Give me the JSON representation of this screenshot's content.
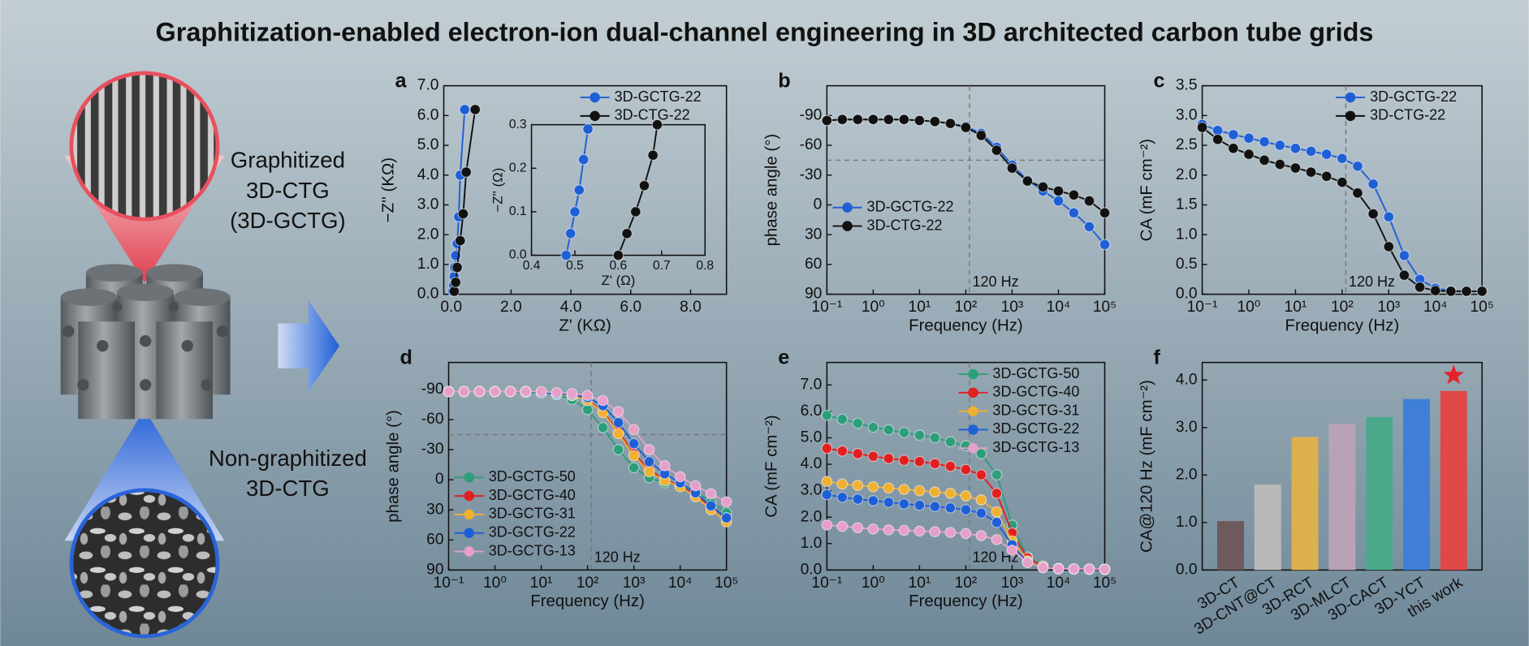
{
  "title": "Graphitization-enabled electron-ion dual-channel engineering in 3D architected carbon tube grids",
  "illustration": {
    "top_label": [
      "Graphitized",
      "3D-CTG",
      "(3D-GCTG)"
    ],
    "bottom_label": [
      "Non-graphitized",
      "3D-CTG"
    ]
  },
  "chart_data": [
    {
      "type": "line",
      "label": "a",
      "markers": true,
      "xlabel": "Z' (KΩ)",
      "ylabel": "−Z'' (KΩ)",
      "xlim": [
        -0.25,
        9.2
      ],
      "ylim": [
        0,
        7
      ],
      "xticks": [
        {
          "value": 0,
          "label": "0.0"
        },
        {
          "value": 2,
          "label": "2.0"
        },
        {
          "value": 4,
          "label": "4.0"
        },
        {
          "value": 6,
          "label": "6.0"
        },
        {
          "value": 8,
          "label": "8.0"
        }
      ],
      "yticks": [
        {
          "value": 0,
          "label": "0.0"
        },
        {
          "value": 1,
          "label": "1.0"
        },
        {
          "value": 2,
          "label": "2.0"
        },
        {
          "value": 3,
          "label": "3.0"
        },
        {
          "value": 4,
          "label": "4.0"
        },
        {
          "value": 5,
          "label": "5.0"
        },
        {
          "value": 6,
          "label": "6.0"
        },
        {
          "value": 7,
          "label": "7.0"
        }
      ],
      "legend": "upper right",
      "series": [
        {
          "name": "3D-GCTG-22",
          "color": "#1f5fd6",
          "x": [
            0.05,
            0.08,
            0.1,
            0.12,
            0.15,
            0.2,
            0.25,
            0.3,
            0.45
          ],
          "values": [
            0.1,
            0.3,
            0.6,
            0.9,
            1.3,
            1.7,
            2.6,
            4.0,
            6.2
          ]
        },
        {
          "name": "3D-CTG-22",
          "color": "#111111",
          "x": [
            0.1,
            0.15,
            0.2,
            0.3,
            0.4,
            0.5,
            0.8
          ],
          "values": [
            0.1,
            0.4,
            0.9,
            1.8,
            2.7,
            4.1,
            6.2
          ]
        }
      ],
      "inset": {
        "type": "line",
        "markers": true,
        "xlabel": "Z' (Ω)",
        "ylabel": "−Z'' (Ω)",
        "xlim": [
          0.4,
          0.8
        ],
        "ylim": [
          0,
          0.3
        ],
        "xticks": [
          0.4,
          0.5,
          0.6,
          0.7,
          0.8
        ],
        "yticks": [
          {
            "value": 0,
            "label": "0.0"
          },
          0.1,
          0.2,
          0.3
        ],
        "series": [
          {
            "color": "#1f5fd6",
            "x": [
              0.48,
              0.49,
              0.5,
              0.51,
              0.52,
              0.53
            ],
            "values": [
              0,
              0.05,
              0.1,
              0.15,
              0.22,
              0.29
            ]
          },
          {
            "color": "#111111",
            "x": [
              0.6,
              0.62,
              0.64,
              0.66,
              0.68,
              0.69
            ],
            "values": [
              0,
              0.05,
              0.1,
              0.16,
              0.23,
              0.3
            ]
          }
        ]
      }
    },
    {
      "type": "line",
      "label": "b",
      "markers": true,
      "xscale": "log",
      "xlabel": "Frequency (Hz)",
      "ylabel": "phase angle (°)",
      "xlim": [
        0.1,
        100000
      ],
      "ylim": [
        90,
        -120
      ],
      "xticks": [
        {
          "value": 0.1,
          "label": "10⁻¹"
        },
        {
          "value": 1,
          "label": "10⁰"
        },
        {
          "value": 10,
          "label": "10¹"
        },
        {
          "value": 100,
          "label": "10²"
        },
        {
          "value": 1000,
          "label": "10³"
        },
        {
          "value": 10000,
          "label": "10⁴"
        },
        {
          "value": 100000,
          "label": "10⁵"
        }
      ],
      "yticks": [
        -90,
        -60,
        -30,
        0,
        30,
        60,
        90
      ],
      "ref_x": 120,
      "ref_y": -45,
      "annotation": "120 Hz",
      "legend": "center left",
      "x": [
        0.1,
        0.215,
        0.464,
        1,
        2.15,
        4.64,
        10,
        21.5,
        46.4,
        100,
        215,
        464,
        1000,
        2150,
        4640,
        10000,
        21500,
        46400,
        100000
      ],
      "series": [
        {
          "name": "3D-GCTG-22",
          "color": "#1f5fd6",
          "values": [
            -85,
            -86,
            -86,
            -86,
            -86,
            -86,
            -85,
            -84,
            -82,
            -79,
            -72,
            -58,
            -40,
            -25,
            -14,
            -4,
            8,
            22,
            40
          ]
        },
        {
          "name": "3D-CTG-22",
          "color": "#111111",
          "values": [
            -85,
            -86,
            -86,
            -86,
            -86,
            -86,
            -85,
            -84,
            -82,
            -78,
            -70,
            -55,
            -37,
            -24,
            -18,
            -14,
            -10,
            -4,
            8
          ]
        }
      ]
    },
    {
      "type": "line",
      "label": "c",
      "markers": true,
      "xscale": "log",
      "xlabel": "Frequency (Hz)",
      "ylabel": "CA (mF cm⁻²)",
      "xlim": [
        0.1,
        100000
      ],
      "ylim": [
        0,
        3.5
      ],
      "xticks": [
        {
          "value": 0.1,
          "label": "10⁻¹"
        },
        {
          "value": 1,
          "label": "10⁰"
        },
        {
          "value": 10,
          "label": "10¹"
        },
        {
          "value": 100,
          "label": "10²"
        },
        {
          "value": 1000,
          "label": "10³"
        },
        {
          "value": 10000,
          "label": "10⁴"
        },
        {
          "value": 100000,
          "label": "10⁵"
        }
      ],
      "yticks": [
        {
          "value": 0,
          "label": "0.0"
        },
        0.5,
        {
          "value": 1,
          "label": "1.0"
        },
        1.5,
        {
          "value": 2,
          "label": "2.0"
        },
        2.5,
        {
          "value": 3,
          "label": "3.0"
        },
        3.5
      ],
      "ref_x": 120,
      "annotation": "120 Hz",
      "legend": "upper right",
      "x": [
        0.1,
        0.215,
        0.464,
        1,
        2.15,
        4.64,
        10,
        21.5,
        46.4,
        100,
        215,
        464,
        1000,
        2150,
        4640,
        10000,
        21500,
        46400,
        100000
      ],
      "series": [
        {
          "name": "3D-GCTG-22",
          "color": "#1f5fd6",
          "values": [
            2.85,
            2.75,
            2.68,
            2.62,
            2.56,
            2.5,
            2.45,
            2.4,
            2.35,
            2.28,
            2.15,
            1.85,
            1.3,
            0.65,
            0.25,
            0.1,
            0.06,
            0.05,
            0.05
          ]
        },
        {
          "name": "3D-CTG-22",
          "color": "#111111",
          "values": [
            2.8,
            2.6,
            2.45,
            2.35,
            2.25,
            2.18,
            2.12,
            2.05,
            1.98,
            1.88,
            1.7,
            1.35,
            0.8,
            0.32,
            0.12,
            0.06,
            0.05,
            0.05,
            0.05
          ]
        }
      ]
    },
    {
      "type": "line",
      "label": "d",
      "markers": true,
      "xscale": "log",
      "xlabel": "Frequency (Hz)",
      "ylabel": "phase angle (°)",
      "xlim": [
        0.1,
        100000
      ],
      "ylim": [
        90,
        -117
      ],
      "xticks": [
        {
          "value": 0.1,
          "label": "10⁻¹"
        },
        {
          "value": 1,
          "label": "10⁰"
        },
        {
          "value": 10,
          "label": "10¹"
        },
        {
          "value": 100,
          "label": "10²"
        },
        {
          "value": 1000,
          "label": "10³"
        },
        {
          "value": 10000,
          "label": "10⁴"
        },
        {
          "value": 100000,
          "label": "10⁵"
        }
      ],
      "yticks": [
        -90,
        -60,
        -30,
        0,
        30,
        60,
        90
      ],
      "ref_x": 120,
      "ref_y": -45,
      "annotation": "120 Hz",
      "legend": "lower left",
      "x": [
        0.1,
        0.215,
        0.464,
        1,
        2.15,
        4.64,
        10,
        21.5,
        46.4,
        100,
        215,
        464,
        1000,
        2150,
        4640,
        10000,
        21500,
        46400,
        100000
      ],
      "series": [
        {
          "name": "3D-GCTG-50",
          "color": "#2e9e7a",
          "values": [
            -88,
            -88,
            -88,
            -88,
            -88,
            -87,
            -87,
            -85,
            -80,
            -70,
            -52,
            -30,
            -12,
            -2,
            3,
            6,
            12,
            22,
            33
          ]
        },
        {
          "name": "3D-GCTG-40",
          "color": "#e02020",
          "values": [
            -88,
            -88,
            -88,
            -88,
            -88,
            -88,
            -87,
            -86,
            -84,
            -80,
            -68,
            -48,
            -26,
            -10,
            0,
            6,
            15,
            27,
            38
          ]
        },
        {
          "name": "3D-GCTG-31",
          "color": "#f0b030",
          "values": [
            -88,
            -88,
            -88,
            -88,
            -88,
            -88,
            -87,
            -86,
            -84,
            -79,
            -67,
            -46,
            -24,
            -8,
            1,
            7,
            17,
            30,
            42
          ]
        },
        {
          "name": "3D-GCTG-22",
          "color": "#1f5fd6",
          "values": [
            -88,
            -88,
            -88,
            -88,
            -88,
            -88,
            -87,
            -86,
            -85,
            -82,
            -74,
            -57,
            -36,
            -18,
            -6,
            3,
            13,
            26,
            38
          ]
        },
        {
          "name": "3D-GCTG-13",
          "color": "#e6a0c8",
          "values": [
            -88,
            -88,
            -88,
            -88,
            -88,
            -88,
            -88,
            -87,
            -86,
            -84,
            -79,
            -68,
            -50,
            -30,
            -14,
            -3,
            6,
            14,
            22
          ]
        }
      ]
    },
    {
      "type": "line",
      "label": "e",
      "markers": true,
      "xscale": "log",
      "xlabel": "Frequency (Hz)",
      "ylabel": "CA (mF cm⁻²)",
      "xlim": [
        0.1,
        100000
      ],
      "ylim": [
        0,
        7.85
      ],
      "xticks": [
        {
          "value": 0.1,
          "label": "10⁻¹"
        },
        {
          "value": 1,
          "label": "10⁰"
        },
        {
          "value": 10,
          "label": "10¹"
        },
        {
          "value": 100,
          "label": "10²"
        },
        {
          "value": 1000,
          "label": "10³"
        },
        {
          "value": 10000,
          "label": "10⁴"
        },
        {
          "value": 100000,
          "label": "10⁵"
        }
      ],
      "yticks": [
        {
          "value": 0,
          "label": "0.0"
        },
        {
          "value": 1,
          "label": "1.0"
        },
        {
          "value": 2,
          "label": "2.0"
        },
        {
          "value": 3,
          "label": "3.0"
        },
        {
          "value": 4,
          "label": "4.0"
        },
        {
          "value": 5,
          "label": "5.0"
        },
        {
          "value": 6,
          "label": "6.0"
        },
        {
          "value": 7,
          "label": "7.0"
        }
      ],
      "ref_x": 120,
      "annotation": "120 Hz",
      "legend": "upper right",
      "x": [
        0.1,
        0.215,
        0.464,
        1,
        2.15,
        4.64,
        10,
        21.5,
        46.4,
        100,
        215,
        464,
        1000,
        2150,
        4640,
        10000,
        21500,
        46400,
        100000
      ],
      "series": [
        {
          "name": "3D-GCTG-50",
          "color": "#2e9e7a",
          "values": [
            5.85,
            5.7,
            5.55,
            5.4,
            5.3,
            5.2,
            5.1,
            5.0,
            4.85,
            4.7,
            4.4,
            3.6,
            1.7,
            0.5,
            0.15,
            0.06,
            0.04,
            0.03,
            0.03
          ]
        },
        {
          "name": "3D-GCTG-40",
          "color": "#e02020",
          "values": [
            4.6,
            4.5,
            4.4,
            4.3,
            4.22,
            4.15,
            4.1,
            4.02,
            3.92,
            3.8,
            3.6,
            2.9,
            1.4,
            0.45,
            0.13,
            0.05,
            0.04,
            0.03,
            0.03
          ]
        },
        {
          "name": "3D-GCTG-31",
          "color": "#f0b030",
          "values": [
            3.35,
            3.25,
            3.2,
            3.15,
            3.1,
            3.05,
            3.0,
            2.95,
            2.9,
            2.8,
            2.65,
            2.2,
            1.1,
            0.35,
            0.1,
            0.05,
            0.04,
            0.03,
            0.03
          ]
        },
        {
          "name": "3D-GCTG-22",
          "color": "#1f5fd6",
          "values": [
            2.85,
            2.75,
            2.68,
            2.62,
            2.56,
            2.5,
            2.45,
            2.4,
            2.35,
            2.28,
            2.15,
            1.8,
            0.95,
            0.3,
            0.09,
            0.05,
            0.04,
            0.03,
            0.03
          ]
        },
        {
          "name": "3D-GCTG-13",
          "color": "#e6a0c8",
          "values": [
            1.7,
            1.65,
            1.6,
            1.55,
            1.52,
            1.5,
            1.47,
            1.45,
            1.42,
            1.38,
            1.3,
            1.15,
            0.75,
            0.28,
            0.09,
            0.05,
            0.04,
            0.03,
            0.03
          ]
        }
      ]
    },
    {
      "type": "bar",
      "label": "f",
      "ylabel": "CA@120 Hz (mF cm⁻²)",
      "ylim": [
        0,
        4.37
      ],
      "yticks": [
        {
          "value": 0,
          "label": "0.0"
        },
        {
          "value": 1,
          "label": "1.0"
        },
        {
          "value": 2,
          "label": "2.0"
        },
        {
          "value": 3,
          "label": "3.0"
        },
        {
          "value": 4,
          "label": "4.0"
        }
      ],
      "categories": [
        "3D-CT",
        "3D-CNT@CT",
        "3D-RCT",
        "3D-MLCT",
        "3D-CACT",
        "3D-YCT",
        "this work"
      ],
      "values": [
        1.03,
        1.8,
        2.8,
        3.08,
        3.22,
        3.6,
        3.77
      ],
      "colors": [
        "#6e5a5c",
        "#b9b9b9",
        "#dcb04e",
        "#b9a2b8",
        "#4ca98c",
        "#3f7fd8",
        "#e04848"
      ]
    }
  ]
}
